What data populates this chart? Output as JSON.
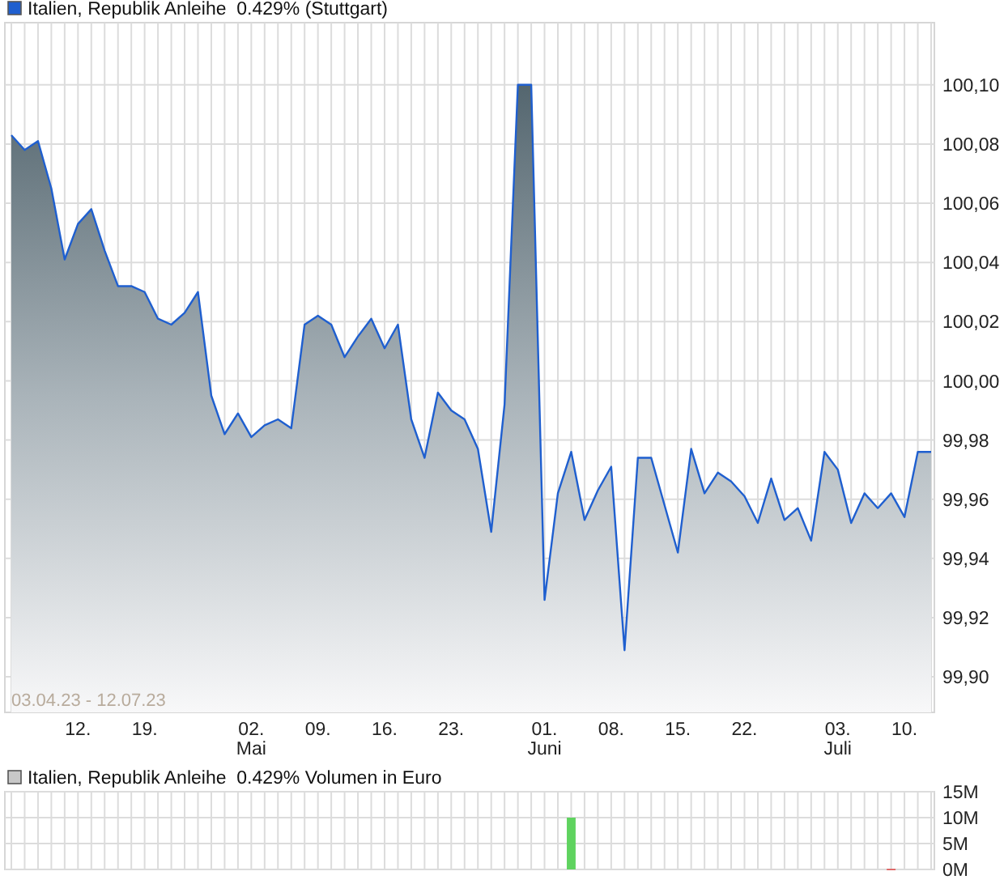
{
  "chart_data": [
    {
      "type": "area",
      "categories": [
        null,
        null,
        null,
        null,
        null,
        "12.",
        null,
        null,
        null,
        null,
        "19.",
        null,
        null,
        null,
        null,
        null,
        null,
        null,
        "02.\nMai",
        null,
        null,
        null,
        null,
        "09.",
        null,
        null,
        null,
        null,
        "16.",
        null,
        null,
        null,
        null,
        "23.",
        null,
        null,
        null,
        null,
        null,
        null,
        "01.\nJuni",
        null,
        null,
        null,
        null,
        "08.",
        null,
        null,
        null,
        null,
        "15.",
        null,
        null,
        null,
        null,
        "22.",
        null,
        null,
        null,
        null,
        null,
        null,
        "03.\nJuli",
        null,
        null,
        null,
        null,
        "10.",
        null,
        null
      ],
      "series": [
        {
          "name": "Italien, Republik Anleihe  0.429% (Stuttgart)",
          "color": "#1f5fcf",
          "values": [
            100.083,
            100.078,
            100.081,
            100.065,
            100.041,
            100.053,
            100.058,
            100.044,
            100.032,
            100.032,
            100.03,
            100.021,
            100.019,
            100.023,
            100.03,
            99.995,
            99.982,
            99.989,
            99.981,
            99.985,
            99.987,
            99.984,
            100.019,
            100.022,
            100.019,
            100.008,
            100.015,
            100.021,
            100.011,
            100.019,
            99.987,
            99.974,
            99.996,
            99.99,
            99.987,
            99.977,
            99.949,
            99.992,
            100.1,
            100.1,
            99.926,
            99.962,
            99.976,
            99.953,
            99.963,
            99.971,
            99.909,
            99.974,
            99.974,
            99.958,
            99.942,
            99.977,
            99.962,
            99.969,
            99.966,
            99.961,
            99.952,
            99.967,
            99.953,
            99.957,
            99.946,
            99.976,
            99.97,
            99.952,
            99.962,
            99.957,
            99.962,
            99.954,
            99.976,
            99.976
          ]
        }
      ],
      "ylim": [
        99.888,
        100.121
      ],
      "yticks": [
        {
          "value": 99.9,
          "label": "99,90"
        },
        {
          "value": 99.92,
          "label": "99,92"
        },
        {
          "value": 99.94,
          "label": "99,94"
        },
        {
          "value": 99.96,
          "label": "99,96"
        },
        {
          "value": 99.98,
          "label": "99,98"
        },
        {
          "value": 100,
          "label": "100,00"
        },
        {
          "value": 100.02,
          "label": "100,02"
        },
        {
          "value": 100.04,
          "label": "100,04"
        },
        {
          "value": 100.06,
          "label": "100,06"
        },
        {
          "value": 100.08,
          "label": "100,08"
        },
        {
          "value": 100.1,
          "label": "100,10"
        }
      ],
      "grid": true,
      "legend": "top left",
      "annotations": [
        "03.04.23 - 12.07.23"
      ]
    },
    {
      "type": "bar",
      "categories": [
        null,
        null,
        null,
        null,
        null,
        null,
        null,
        null,
        null,
        null,
        null,
        null,
        null,
        null,
        null,
        null,
        null,
        null,
        null,
        null,
        null,
        null,
        null,
        null,
        null,
        null,
        null,
        null,
        null,
        null,
        null,
        null,
        null,
        null,
        null,
        null,
        null,
        null,
        null,
        null,
        null,
        null,
        null,
        null,
        null,
        null,
        null,
        null,
        null,
        null,
        null,
        null,
        null,
        null,
        null,
        null,
        null,
        null,
        null,
        null,
        null,
        null,
        null,
        null,
        null,
        null,
        null,
        null,
        null,
        null
      ],
      "series": [
        {
          "name": "Italien, Republik Anleihe  0.429% Volumen in Euro",
          "color": "#c8c8c8",
          "values": [
            null,
            null,
            null,
            null,
            null,
            null,
            null,
            null,
            null,
            null,
            null,
            null,
            null,
            null,
            null,
            null,
            null,
            null,
            null,
            null,
            null,
            null,
            null,
            null,
            null,
            null,
            null,
            null,
            null,
            null,
            null,
            null,
            null,
            null,
            null,
            null,
            null,
            null,
            null,
            null,
            null,
            null,
            10,
            null,
            null,
            null,
            null,
            null,
            null,
            null,
            null,
            null,
            null,
            null,
            null,
            null,
            null,
            null,
            null,
            null,
            null,
            null,
            null,
            null,
            null,
            null,
            0.1,
            null,
            null,
            null
          ],
          "colors": [
            null,
            null,
            null,
            null,
            null,
            null,
            null,
            null,
            null,
            null,
            null,
            null,
            null,
            null,
            null,
            null,
            null,
            null,
            null,
            null,
            null,
            null,
            null,
            null,
            null,
            null,
            null,
            null,
            null,
            null,
            null,
            null,
            null,
            null,
            null,
            null,
            null,
            null,
            null,
            null,
            null,
            null,
            "#5fd35f",
            null,
            null,
            null,
            null,
            null,
            null,
            null,
            null,
            null,
            null,
            null,
            null,
            null,
            null,
            null,
            null,
            null,
            null,
            null,
            null,
            null,
            null,
            null,
            "#e05050",
            null,
            null,
            null
          ]
        }
      ],
      "ylim": [
        0,
        15
      ],
      "yticks": [
        {
          "value": 0,
          "label": "0M"
        },
        {
          "value": 5,
          "label": "5M"
        },
        {
          "value": 10,
          "label": "10M"
        },
        {
          "value": 15,
          "label": "15M"
        }
      ],
      "grid": true,
      "legend": "top left"
    }
  ]
}
